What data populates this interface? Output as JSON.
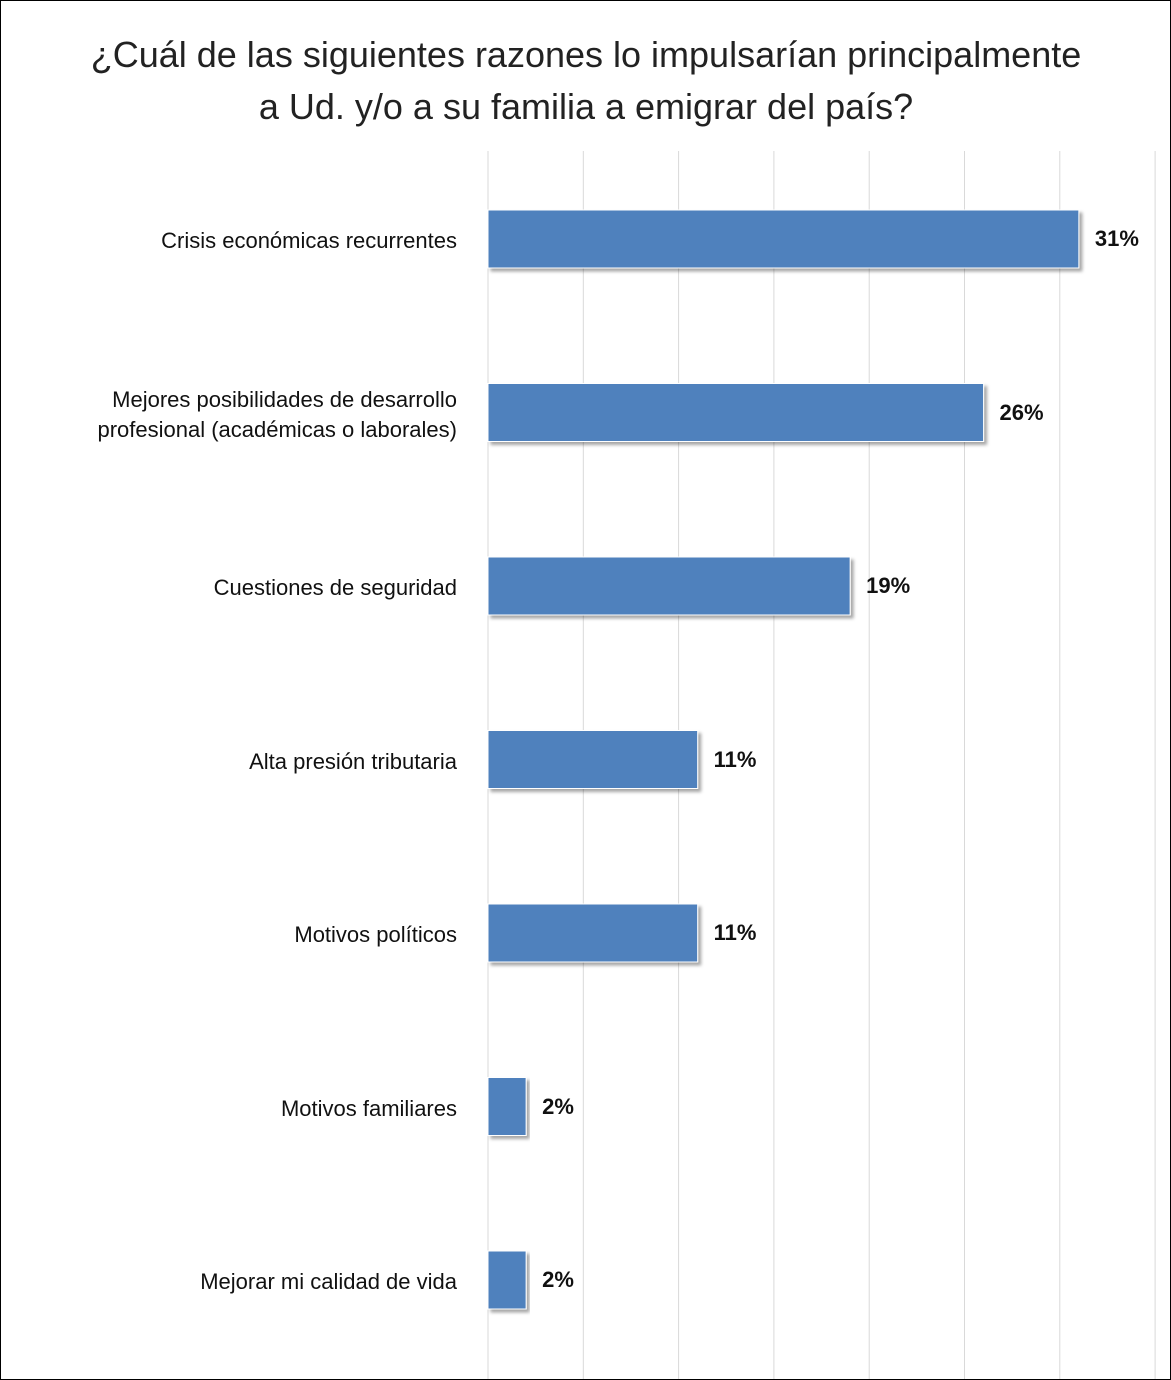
{
  "chart_data": {
    "type": "bar",
    "orientation": "horizontal",
    "title": "¿Cuál de las siguientes razones lo impulsarían principalmente a Ud. y/o a su familia a emigrar del país?",
    "title_lines": [
      "¿Cuál de las siguientes razones lo impulsarían principalmente",
      "a Ud. y/o a su familia a emigrar del país?"
    ],
    "categories": [
      "Crisis económicas recurrentes",
      "Mejores posibilidades de desarrollo profesional (académicas o laborales)",
      "Cuestiones de seguridad",
      "Alta presión tributaria",
      "Motivos políticos",
      "Motivos familiares",
      "Mejorar mi calidad de vida"
    ],
    "category_lines": [
      [
        "Crisis económicas recurrentes"
      ],
      [
        "Mejores posibilidades de desarrollo",
        "profesional (académicas o laborales)"
      ],
      [
        "Cuestiones de seguridad"
      ],
      [
        "Alta presión tributaria"
      ],
      [
        "Motivos políticos"
      ],
      [
        "Motivos familiares"
      ],
      [
        "Mejorar mi calidad de vida"
      ]
    ],
    "values": [
      31,
      26,
      19,
      11,
      11,
      2,
      2
    ],
    "value_labels": [
      "31%",
      "26%",
      "19%",
      "11%",
      "11%",
      "2%",
      "2%"
    ],
    "xlim": [
      0,
      35
    ],
    "grid": true,
    "legend": "none",
    "bar_color": "#4F81BD",
    "grid_color": "#D9D9D9"
  }
}
